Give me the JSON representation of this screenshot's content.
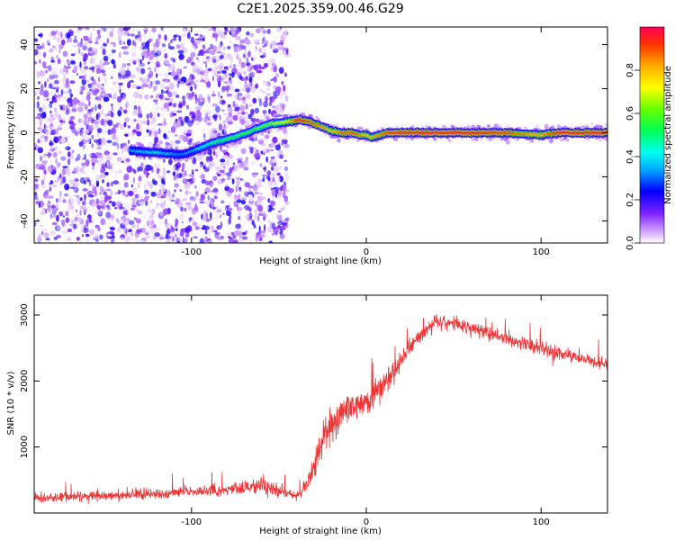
{
  "figure": {
    "title": "C2E1.2025.359.00.46.G29"
  },
  "chart_data": [
    {
      "type": "heatmap",
      "name": "spectrogram",
      "xlabel": "Height of straight line (km)",
      "ylabel": "Frequency (Hz)",
      "xlim": [
        -190,
        138
      ],
      "ylim": [
        -50,
        48
      ],
      "xticks": [
        -100,
        0,
        100
      ],
      "yticks": [
        -40,
        -20,
        0,
        20,
        40
      ],
      "ridge": {
        "description": "high-amplitude frequency track",
        "x": [
          -135,
          -120,
          -105,
          -95,
          -85,
          -75,
          -65,
          -55,
          -45,
          -38,
          -32,
          -26,
          -20,
          -15,
          -8,
          -3,
          0,
          3,
          8,
          12,
          20,
          40,
          60,
          80,
          100,
          110,
          138
        ],
        "y": [
          -8,
          -9,
          -10,
          -7,
          -4,
          -2,
          1,
          4,
          5,
          6,
          5,
          3,
          1,
          0,
          0,
          -1,
          -1,
          -2,
          -1,
          0,
          0,
          0,
          0,
          0,
          -1,
          0,
          0
        ],
        "amplitude": [
          0.35,
          0.4,
          0.3,
          0.4,
          0.5,
          0.55,
          0.55,
          0.6,
          0.75,
          0.95,
          0.9,
          0.85,
          0.8,
          0.85,
          0.9,
          0.85,
          0.8,
          0.8,
          0.85,
          0.9,
          0.95,
          0.95,
          0.95,
          0.9,
          0.8,
          0.95,
          0.95
        ]
      },
      "noise_region_xlim": [
        -190,
        -45
      ]
    },
    {
      "type": "colorbar",
      "name": "amplitude-colorbar",
      "label": "Normalized spectral amplitude",
      "range": [
        0,
        1
      ],
      "ticks": [
        "0.0",
        "0.2",
        "0.4",
        "0.6",
        "0.8"
      ],
      "tick_values": [
        0.0,
        0.2,
        0.4,
        0.6,
        0.8
      ]
    },
    {
      "type": "line",
      "name": "snr",
      "xlabel": "Height of straight line (km)",
      "ylabel": "SNR (10 * v/v)",
      "xlim": [
        -190,
        138
      ],
      "ylim": [
        0,
        3300
      ],
      "xticks": [
        -100,
        0,
        100
      ],
      "yticks": [
        1000,
        2000,
        3000
      ],
      "color": "#ee3333",
      "envelope": {
        "x": [
          -190,
          -150,
          -100,
          -70,
          -60,
          -45,
          -40,
          -35,
          -30,
          -25,
          -20,
          -10,
          0,
          10,
          20,
          30,
          40,
          60,
          80,
          100,
          120,
          138
        ],
        "mean": [
          230,
          260,
          320,
          380,
          420,
          300,
          260,
          380,
          700,
          1150,
          1350,
          1600,
          1700,
          1950,
          2300,
          2700,
          2900,
          2800,
          2650,
          2480,
          2350,
          2250
        ],
        "spread": [
          120,
          120,
          130,
          150,
          250,
          120,
          110,
          200,
          350,
          500,
          450,
          350,
          300,
          300,
          300,
          200,
          200,
          180,
          170,
          170,
          170,
          160
        ]
      }
    }
  ]
}
